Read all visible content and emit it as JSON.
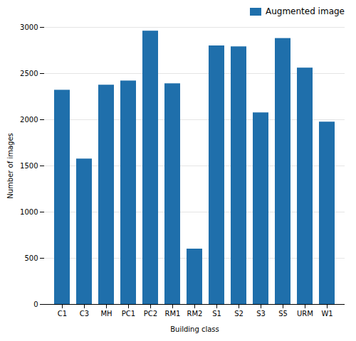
{
  "chart_data": {
    "type": "bar",
    "categories": [
      "C1",
      "C3",
      "MH",
      "PC1",
      "PC2",
      "RM1",
      "RM2",
      "S1",
      "S2",
      "S3",
      "S5",
      "URM",
      "W1"
    ],
    "series": [
      {
        "name": "Augmented image",
        "color": "#1f6fab",
        "values": [
          2320,
          1575,
          2375,
          2420,
          2960,
          2390,
          600,
          2800,
          2790,
          2075,
          2880,
          2560,
          1975
        ]
      }
    ],
    "xlabel": "Building class",
    "ylabel": "Number of images",
    "ylim": [
      0,
      3000
    ],
    "yticks": [
      0,
      500,
      1000,
      1500,
      2000,
      2500,
      3000
    ],
    "grid": true,
    "legend": "upper right"
  }
}
